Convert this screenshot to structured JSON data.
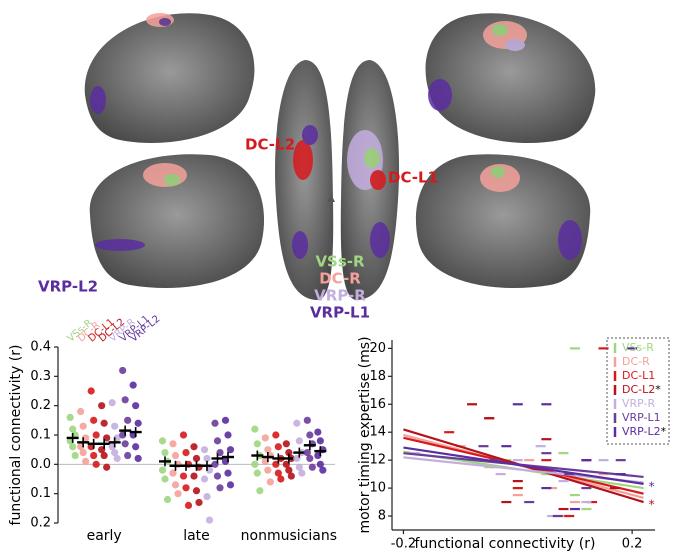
{
  "figure": {
    "labels": [
      {
        "text": "DC-L2",
        "color": "#d7191c"
      },
      {
        "text": "DC-L1",
        "color": "#d7191c"
      },
      {
        "text": "VRP-L2",
        "color": "#5b2ea0"
      },
      {
        "text": "VSs-R",
        "color": "#9fd67f"
      },
      {
        "text": "DC-R",
        "color": "#f4a19a"
      },
      {
        "text": "VRP-R",
        "color": "#c3aee0"
      },
      {
        "text": "VRP-L1",
        "color": "#5b2ea0"
      }
    ]
  },
  "chart_data": [
    {
      "type": "strip",
      "ylabel": "functional connectivity (r)",
      "categories": [
        "early",
        "late",
        "nonmusicians"
      ],
      "ylim": [
        -0.2,
        0.4
      ],
      "yticks": [
        {
          "value": -0.2,
          "label": "0.2"
        },
        {
          "value": -0.1,
          "label": "0.1"
        },
        {
          "value": 0,
          "label": "0.0"
        },
        0.1,
        0.2,
        0.3,
        0.4
      ],
      "series": [
        {
          "name": "VSs-R",
          "color": "#9fd67f",
          "values": [
            0.09,
            0.01,
            0.03
          ],
          "points": [
            [
              0.16,
              0.12,
              0.1,
              0.08,
              0.06,
              0.03
            ],
            [
              0.08,
              0.04,
              0.01,
              -0.02,
              -0.05,
              -0.12
            ],
            [
              0.12,
              0.07,
              0.03,
              0.0,
              -0.03,
              -0.09
            ]
          ]
        },
        {
          "name": "DC-R",
          "color": "#f4a19a",
          "values": [
            0.075,
            -0.005,
            0.025
          ],
          "points": [
            [
              0.18,
              0.13,
              0.09,
              0.06,
              0.04,
              0.01
            ],
            [
              0.07,
              0.03,
              0.0,
              -0.03,
              -0.07,
              -0.1
            ],
            [
              0.09,
              0.05,
              0.03,
              0.01,
              -0.02,
              -0.06
            ]
          ]
        },
        {
          "name": "DC-L1",
          "color": "#d7191c",
          "values": [
            0.07,
            -0.005,
            0.02
          ],
          "points": [
            [
              0.25,
              0.15,
              0.1,
              0.06,
              0.03,
              0.0
            ],
            [
              0.1,
              0.04,
              0.0,
              -0.04,
              -0.08,
              -0.14
            ],
            [
              0.1,
              0.06,
              0.02,
              0.0,
              -0.03,
              -0.05
            ]
          ]
        },
        {
          "name": "DC-L2",
          "color": "#b5121b",
          "values": [
            0.07,
            -0.005,
            0.02
          ],
          "points": [
            [
              0.2,
              0.14,
              0.09,
              0.05,
              0.03,
              -0.01
            ],
            [
              0.06,
              0.02,
              -0.01,
              -0.04,
              -0.09,
              -0.13
            ],
            [
              0.07,
              0.04,
              0.02,
              0.0,
              -0.02,
              -0.04
            ]
          ]
        },
        {
          "name": "VRP-R",
          "color": "#c3aee0",
          "values": [
            0.075,
            -0.005,
            0.04
          ],
          "points": [
            [
              0.21,
              0.13,
              0.09,
              0.06,
              0.04,
              0.02
            ],
            [
              0.05,
              0.02,
              -0.02,
              -0.05,
              -0.11,
              -0.19
            ],
            [
              0.14,
              0.08,
              0.04,
              0.02,
              -0.01,
              -0.03
            ]
          ]
        },
        {
          "name": "VRP-L1",
          "color": "#6a3d9a",
          "values": [
            0.115,
            0.02,
            0.065
          ],
          "points": [
            [
              0.32,
              0.22,
              0.15,
              0.1,
              0.07,
              0.03
            ],
            [
              0.14,
              0.08,
              0.04,
              0.0,
              -0.04,
              -0.08
            ],
            [
              0.15,
              0.1,
              0.07,
              0.04,
              0.02,
              -0.01
            ]
          ]
        },
        {
          "name": "VRP-L2",
          "color": "#5b2ea0",
          "values": [
            0.11,
            0.025,
            0.045
          ],
          "points": [
            [
              0.27,
              0.2,
              0.14,
              0.1,
              0.06,
              0.02
            ],
            [
              0.15,
              0.1,
              0.05,
              0.01,
              -0.03,
              -0.07
            ],
            [
              0.11,
              0.08,
              0.05,
              0.03,
              0.0,
              -0.02
            ]
          ]
        }
      ]
    },
    {
      "type": "scatter",
      "xlabel": "functional connectivity (r)",
      "ylabel": "motor timing expertise (ms)",
      "xlim": [
        -0.22,
        0.24
      ],
      "ylim": [
        7,
        20.6
      ],
      "xticks": [
        -0.2,
        0.2
      ],
      "yticks": [
        8,
        10,
        12,
        14,
        16,
        18,
        20
      ],
      "fit_x": [
        -0.2,
        0.22
      ],
      "series": [
        {
          "name": "VSs-R",
          "color": "#9fd67f",
          "x": [
            -0.02,
            0.05,
            0.1,
            0.0,
            0.08,
            -0.05,
            0.12,
            0.1
          ],
          "y": [
            12,
            11,
            9.5,
            10,
            12.5,
            11.5,
            8.5,
            20
          ],
          "fit": [
            12.6,
            10.0
          ]
        },
        {
          "name": "DC-R",
          "color": "#f4a19a",
          "x": [
            -0.1,
            0.02,
            0.06,
            -0.04,
            0.1,
            0.15,
            0.08,
            0.0
          ],
          "y": [
            13,
            12,
            10,
            11.5,
            9,
            11,
            8,
            9.5
          ],
          "fit": [
            13.8,
            9.3
          ]
        },
        {
          "name": "DC-L1",
          "color": "#d7191c",
          "x": [
            -0.12,
            0.05,
            -0.05,
            0.13,
            0.1,
            0.0,
            0.15,
            0.09
          ],
          "y": [
            14,
            12,
            15,
            9,
            11,
            10,
            20,
            8
          ],
          "fit": [
            13.6,
            9.6
          ]
        },
        {
          "name": "DC-L2",
          "color": "#b5121b",
          "sig": "*",
          "x": [
            -0.08,
            -0.05,
            0.05,
            0.12,
            0.0,
            0.17,
            -0.02,
            0.08
          ],
          "y": [
            16,
            15,
            13.5,
            12,
            10.5,
            10,
            9,
            8.5
          ],
          "fit": [
            14.2,
            9.0
          ]
        },
        {
          "name": "VRP-R",
          "color": "#c3aee0",
          "x": [
            -0.18,
            0.0,
            0.08,
            0.12,
            -0.03,
            0.06,
            0.15,
            0.04
          ],
          "y": [
            12.5,
            12,
            10.5,
            9,
            11,
            8,
            12,
            13
          ],
          "fit": [
            12.2,
            10.4
          ]
        },
        {
          "name": "VRP-L1",
          "color": "#6a3d9a",
          "x": [
            -0.04,
            0.05,
            0.09,
            0.18,
            0.02,
            0.12,
            0.07,
            -0.06
          ],
          "y": [
            12,
            12.5,
            11,
            12,
            9,
            10,
            8,
            13
          ],
          "fit": [
            12.5,
            10.8
          ]
        },
        {
          "name": "VRP-L2",
          "color": "#5b2ea0",
          "sig": "*",
          "x": [
            0.0,
            0.05,
            0.12,
            0.2,
            0.18,
            0.1,
            -0.02,
            0.05
          ],
          "y": [
            16,
            16,
            12,
            20,
            11,
            8.5,
            13,
            10
          ],
          "fit": [
            12.9,
            10.3
          ]
        }
      ]
    }
  ]
}
